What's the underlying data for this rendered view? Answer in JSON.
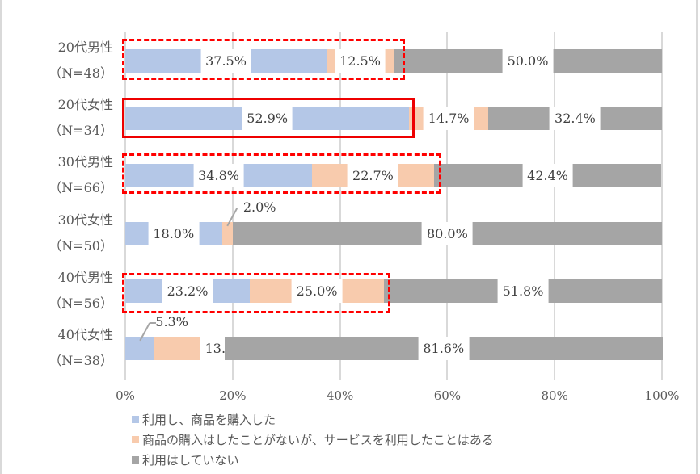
{
  "chart_data": {
    "type": "bar",
    "orientation": "horizontal",
    "stacked": "percent",
    "categories": [
      "20代男性（N=48）",
      "20代女性（N=34）",
      "30代男性（N=66）",
      "30代女性（N=50）",
      "40代男性（N=56）",
      "40代女性（N=38）"
    ],
    "category_lines": [
      [
        "20代男性",
        "（N=48）"
      ],
      [
        "20代女性",
        "（N=34）"
      ],
      [
        "30代男性",
        "（N=66）"
      ],
      [
        "30代女性",
        "（N=50）"
      ],
      [
        "40代男性",
        "（N=56）"
      ],
      [
        "40代女性",
        "（N=38）"
      ]
    ],
    "series": [
      {
        "name": "利用し、商品を購入した",
        "color": "#b4c7e7",
        "values": [
          37.5,
          52.9,
          34.8,
          18.0,
          23.2,
          5.3
        ]
      },
      {
        "name": "商品の購入はしたことがないが、サービスを利用したことはある",
        "color": "#f8cbad",
        "values": [
          12.5,
          14.7,
          22.7,
          2.0,
          25.0,
          13.2
        ]
      },
      {
        "name": "利用はしていない",
        "color": "#a5a5a5",
        "values": [
          50.0,
          32.4,
          42.4,
          80.0,
          51.8,
          81.6
        ]
      }
    ],
    "labels": [
      [
        "37.5%",
        "12.5%",
        "50.0%"
      ],
      [
        "52.9%",
        "14.7%",
        "32.4%"
      ],
      [
        "34.8%",
        "22.7%",
        "42.4%"
      ],
      [
        "18.0%",
        "2.0%",
        "80.0%"
      ],
      [
        "23.2%",
        "25.0%",
        "51.8%"
      ],
      [
        "5.3%",
        "13.2%",
        "81.6%"
      ]
    ],
    "x_ticks": [
      "0%",
      "20%",
      "40%",
      "60%",
      "80%",
      "100%"
    ],
    "xlim": [
      0,
      100
    ],
    "grid": "vertical",
    "legend_position": "bottom",
    "title": "",
    "xlabel": "",
    "ylabel": "",
    "annotations": [
      {
        "type": "dashed-box",
        "row": "20代男性（N=48）",
        "color": "#ff0000"
      },
      {
        "type": "solid-box",
        "row": "20代女性（N=34）",
        "color": "#ee0000"
      },
      {
        "type": "dashed-box",
        "row": "30代男性（N=66）",
        "color": "#ff0000"
      },
      {
        "type": "dashed-box",
        "row": "40代男性（N=56）",
        "color": "#ff0000"
      }
    ]
  }
}
